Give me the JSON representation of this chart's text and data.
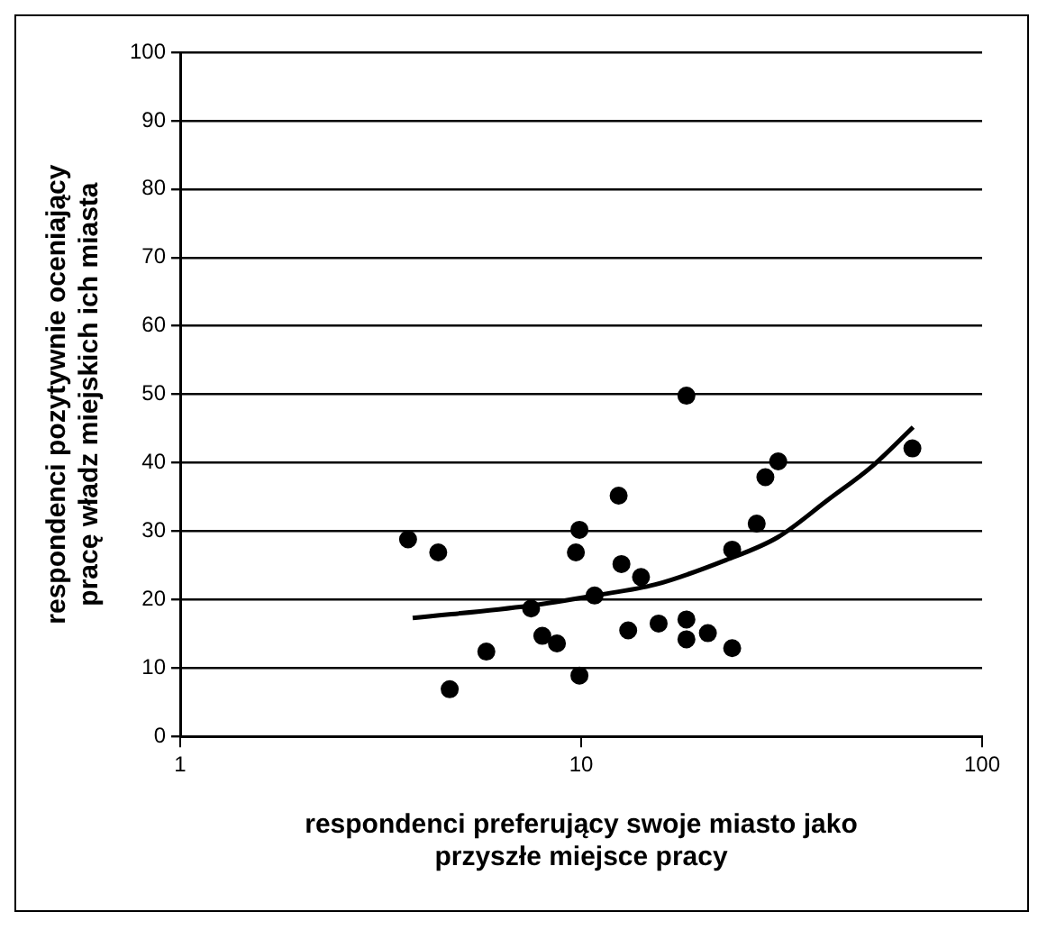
{
  "chart_data": {
    "type": "scatter",
    "xlabel": "respondenci preferujący swoje miasto jako\nprzyszłe miejsce pracy",
    "ylabel": "respondenci pozytywnie oceniający\npracę władz miejskich ich miasta",
    "log": "x",
    "xlim": [
      1,
      100
    ],
    "xticks": [
      1,
      10,
      100
    ],
    "ylim": [
      0,
      100
    ],
    "yticks": [
      0,
      10,
      20,
      30,
      40,
      50,
      60,
      70,
      80,
      90,
      100
    ],
    "grid": "y",
    "legend": false,
    "series": [
      {
        "type": "scatter",
        "color": "#000000",
        "marker": "circle",
        "x": [
          3.7,
          4.4,
          4.7,
          5.8,
          7.5,
          8,
          8.7,
          9.7,
          9.9,
          9.9,
          10.8,
          12.4,
          12.6,
          13.1,
          14.1,
          15.6,
          18.3,
          18.3,
          18.3,
          20.7,
          23.8,
          23.8,
          27.4,
          28.8,
          31,
          67
        ],
        "values": [
          28.8,
          26.9,
          6.9,
          12.4,
          18.7,
          14.7,
          13.6,
          26.9,
          30.2,
          8.9,
          20.6,
          35.2,
          25.2,
          15.5,
          23.3,
          16.5,
          49.8,
          17.1,
          14.2,
          15.1,
          12.9,
          27.3,
          31.1,
          37.9,
          40.2,
          42.1
        ]
      },
      {
        "type": "line",
        "color": "#000000",
        "marker": "none",
        "line_style": "solid",
        "x": [
          3.8,
          7.4,
          10.8,
          15.3,
          23,
          30.9,
          41.3,
          53.2,
          67.3
        ],
        "values": [
          17.3,
          19.1,
          20.6,
          22.2,
          25.8,
          29.1,
          34.6,
          39.5,
          45.2
        ]
      }
    ]
  }
}
